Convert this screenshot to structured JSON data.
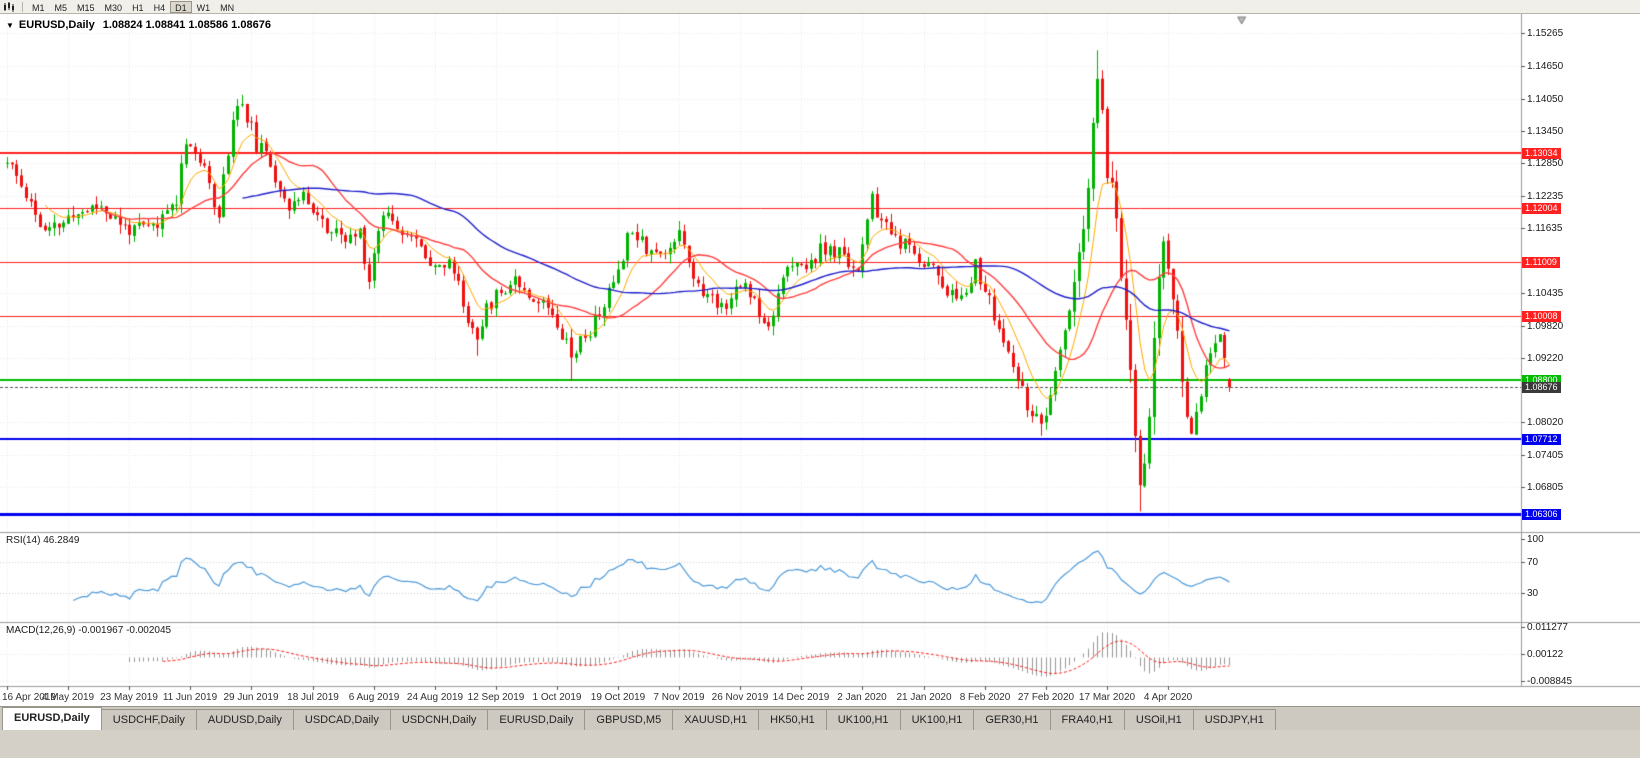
{
  "toolbar": {
    "timeframes": [
      "M1",
      "M5",
      "M15",
      "M30",
      "H1",
      "H4",
      "D1",
      "W1",
      "MN"
    ],
    "active_timeframe": "D1"
  },
  "chart": {
    "collapse_icon": "▼",
    "title": "EURUSD,Daily",
    "ohlc": "1.08824 1.08841 1.08586 1.08676"
  },
  "price_axis": {
    "ticks": [
      {
        "text": "1.15265",
        "value": 1.15265
      },
      {
        "text": "1.14650",
        "value": 1.1465
      },
      {
        "text": "1.14050",
        "value": 1.1405
      },
      {
        "text": "1.13450",
        "value": 1.1345
      },
      {
        "text": "1.12850",
        "value": 1.1285
      },
      {
        "text": "1.12235",
        "value": 1.12235
      },
      {
        "text": "1.11635",
        "value": 1.11635
      },
      {
        "text": "1.10435",
        "value": 1.10435
      },
      {
        "text": "1.09820",
        "value": 1.0982
      },
      {
        "text": "1.09220",
        "value": 1.0922
      },
      {
        "text": "1.08020",
        "value": 1.0802
      },
      {
        "text": "1.07405",
        "value": 1.07405
      },
      {
        "text": "1.06805",
        "value": 1.06805
      }
    ],
    "badges": [
      {
        "text": "1.13034",
        "price": 1.13034,
        "color": "#ff2020",
        "name": "resistance-line-1"
      },
      {
        "text": "1.12004",
        "price": 1.12004,
        "color": "#ff2020",
        "name": "resistance-line-2"
      },
      {
        "text": "1.11009",
        "price": 1.11009,
        "color": "#ff2020",
        "name": "resistance-line-3"
      },
      {
        "text": "1.10008",
        "price": 1.10008,
        "color": "#ff2020",
        "name": "resistance-line-4"
      },
      {
        "text": "1.08800",
        "price": 1.088,
        "color": "#00bb00",
        "name": "support-line-green"
      },
      {
        "text": "1.08676",
        "price": 1.08676,
        "color": "#3a3a3a",
        "name": "bid-price"
      },
      {
        "text": "1.07712",
        "price": 1.07712,
        "color": "#0000ee",
        "name": "support-line-blue-1"
      },
      {
        "text": "1.06306",
        "price": 1.06306,
        "color": "#0000ee",
        "name": "support-line-blue-2"
      }
    ]
  },
  "time_axis": {
    "step": 13,
    "labels": [
      "16 Apr 2019",
      "4 May 2019",
      "23 May 2019",
      "11 Jun 2019",
      "29 Jun 2019",
      "18 Jul 2019",
      "6 Aug 2019",
      "24 Aug 2019",
      "12 Sep 2019",
      "1 Oct 2019",
      "19 Oct 2019",
      "7 Nov 2019",
      "26 Nov 2019",
      "14 Dec 2019",
      "2 Jan 2020",
      "21 Jan 2020",
      "8 Feb 2020",
      "27 Feb 2020",
      "17 Mar 2020",
      "4 Apr 2020"
    ]
  },
  "rsi_panel": {
    "label": "RSI(14) 46.2849",
    "ticks": [
      {
        "text": "100",
        "value": 100
      },
      {
        "text": "70",
        "value": 70
      },
      {
        "text": "30",
        "value": 30
      }
    ],
    "levels": [
      70,
      30
    ],
    "line_color": "#4f9bda"
  },
  "macd_panel": {
    "label": "MACD(12,26,9) -0.001967 -0.002045",
    "ticks": [
      {
        "text": "0.011277",
        "value": 0.011277
      },
      {
        "text": "0.00122",
        "value": 0.00122
      },
      {
        "text": "-0.008845",
        "value": -0.008845
      }
    ],
    "hist_color": "#989898",
    "signal_color": "#ff2020"
  },
  "tabs": {
    "items": [
      {
        "label": "EURUSD,Daily",
        "active": true
      },
      {
        "label": "USDCHF,Daily"
      },
      {
        "label": "AUDUSD,Daily"
      },
      {
        "label": "USDCAD,Daily"
      },
      {
        "label": "USDCNH,Daily"
      },
      {
        "label": "EURUSD,Daily"
      },
      {
        "label": "GBPUSD,M5"
      },
      {
        "label": "XAUUSD,H1"
      },
      {
        "label": "HK50,H1"
      },
      {
        "label": "UK100,H1"
      },
      {
        "label": "UK100,H1"
      },
      {
        "label": "GER30,H1"
      },
      {
        "label": "FRA40,H1"
      },
      {
        "label": "USOil,H1"
      },
      {
        "label": "USDJPY,H1"
      }
    ]
  },
  "chart_data": {
    "type": "candlestick",
    "symbol": "EURUSD",
    "timeframe": "Daily",
    "x_range": [
      "16 Apr 2019",
      "17 Apr 2020"
    ],
    "y_range": [
      1.0605,
      1.1555
    ],
    "num_candles": 261,
    "seed": 11,
    "noise": 0.0016,
    "high_vol_range": [
      226,
      250
    ],
    "anchors": [
      [
        0,
        1.1285
      ],
      [
        4,
        1.123
      ],
      [
        8,
        1.1152
      ],
      [
        12,
        1.1174
      ],
      [
        16,
        1.1196
      ],
      [
        20,
        1.1207
      ],
      [
        24,
        1.1168
      ],
      [
        28,
        1.116
      ],
      [
        32,
        1.1168
      ],
      [
        36,
        1.1221
      ],
      [
        38,
        1.1334
      ],
      [
        41,
        1.1288
      ],
      [
        45,
        1.1195
      ],
      [
        48,
        1.137
      ],
      [
        50,
        1.1398
      ],
      [
        53,
        1.132
      ],
      [
        56,
        1.128
      ],
      [
        60,
        1.1208
      ],
      [
        64,
        1.122
      ],
      [
        68,
        1.116
      ],
      [
        72,
        1.114
      ],
      [
        75,
        1.1155
      ],
      [
        77,
        1.107
      ],
      [
        80,
        1.12
      ],
      [
        83,
        1.1175
      ],
      [
        87,
        1.1135
      ],
      [
        91,
        1.1098
      ],
      [
        95,
        1.109
      ],
      [
        98,
        1.099
      ],
      [
        100,
        1.097
      ],
      [
        103,
        1.1028
      ],
      [
        108,
        1.1073
      ],
      [
        112,
        1.1035
      ],
      [
        116,
        1.1012
      ],
      [
        120,
        1.0932
      ],
      [
        124,
        1.0973
      ],
      [
        128,
        1.104
      ],
      [
        133,
        1.117
      ],
      [
        136,
        1.113
      ],
      [
        140,
        1.111
      ],
      [
        143,
        1.1166
      ],
      [
        147,
        1.105
      ],
      [
        152,
        1.1021
      ],
      [
        157,
        1.106
      ],
      [
        162,
        1.0981
      ],
      [
        165,
        1.108
      ],
      [
        170,
        1.1093
      ],
      [
        173,
        1.1121
      ],
      [
        177,
        1.1115
      ],
      [
        181,
        1.109
      ],
      [
        184,
        1.1212
      ],
      [
        187,
        1.116
      ],
      [
        192,
        1.112
      ],
      [
        197,
        1.109
      ],
      [
        202,
        1.1024
      ],
      [
        206,
        1.1093
      ],
      [
        210,
        1.1
      ],
      [
        215,
        1.0873
      ],
      [
        220,
        1.0786
      ],
      [
        223,
        1.0882
      ],
      [
        226,
        1.1027
      ],
      [
        229,
        1.1135
      ],
      [
        232,
        1.1447
      ],
      [
        234,
        1.128
      ],
      [
        236,
        1.118
      ],
      [
        238,
        1.0995
      ],
      [
        239,
        1.0916
      ],
      [
        241,
        1.0664
      ],
      [
        242,
        1.0726
      ],
      [
        244,
        1.095
      ],
      [
        246,
        1.114
      ],
      [
        248,
        1.1031
      ],
      [
        250,
        1.0858
      ],
      [
        252,
        1.0793
      ],
      [
        254,
        1.0857
      ],
      [
        256,
        1.0935
      ],
      [
        258,
        1.098
      ],
      [
        259,
        1.091
      ],
      [
        260,
        1.0868
      ]
    ],
    "spikes": [
      {
        "i": 50,
        "high": 1.1412
      },
      {
        "i": 100,
        "low": 1.0926
      },
      {
        "i": 120,
        "low": 1.0879
      },
      {
        "i": 220,
        "low": 1.0777
      },
      {
        "i": 232,
        "high": 1.1495
      },
      {
        "i": 241,
        "low": 1.0636
      },
      {
        "i": 246,
        "high": 1.1148
      }
    ],
    "last_candle": {
      "open": 1.08824,
      "high": 1.08841,
      "low": 1.08586,
      "close": 1.08676
    },
    "hlines": [
      {
        "price": 1.13034,
        "color": "#ff2020",
        "width": 2
      },
      {
        "price": 1.12004,
        "color": "#ff2020",
        "width": 1
      },
      {
        "price": 1.11009,
        "color": "#ff2020",
        "width": 1
      },
      {
        "price": 1.10008,
        "color": "#ff2020",
        "width": 1
      },
      {
        "price": 1.088,
        "color": "#00bb00",
        "width": 2
      },
      {
        "price": 1.07712,
        "color": "#0000ee",
        "width": 2
      },
      {
        "price": 1.06306,
        "color": "#0000ee",
        "width": 3
      }
    ],
    "current_price": 1.08676,
    "moving_averages": [
      {
        "period": 8,
        "type": "ema",
        "color": "#ffaa00",
        "width": 1
      },
      {
        "period": 20,
        "type": "sma",
        "color": "#ff4040",
        "width": 1.4
      },
      {
        "period": 50,
        "type": "sma",
        "color": "#2020cc",
        "width": 1.4
      }
    ],
    "indicators": [
      {
        "name": "RSI",
        "period": 14,
        "value": 46.2849
      },
      {
        "name": "MACD",
        "fast": 12,
        "slow": 26,
        "signal_period": 9,
        "value": -0.001967,
        "signal_value": -0.002045
      }
    ],
    "colors": {
      "up": "#00b300",
      "down": "#ee1111",
      "background": "#ffffff",
      "grid": "#ebebeb",
      "bid_line": "#555555"
    }
  }
}
